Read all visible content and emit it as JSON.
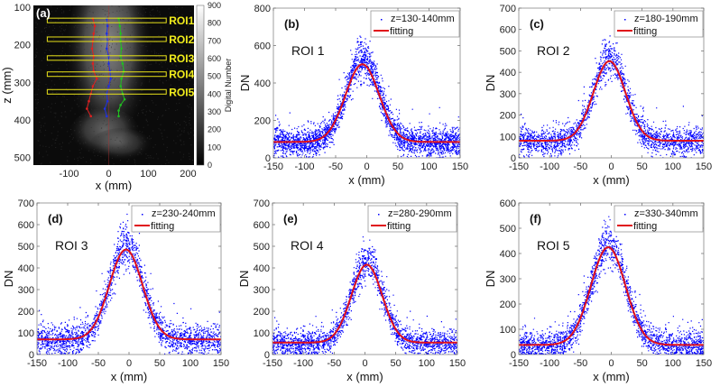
{
  "colors": {
    "scatter": "#0000ff",
    "fit": "#e0101a",
    "roi_box": "#e8e21a",
    "path_left": "#e02020",
    "path_center": "#2030e0",
    "path_right": "#20c020"
  },
  "chart_data": [
    {
      "id": "a",
      "type": "heatmap",
      "panel_label": "(a)",
      "xlabel": "x (mm)",
      "ylabel": "z (mm)",
      "xlim": [
        -190,
        215
      ],
      "ylim": [
        95,
        520
      ],
      "xticks": [
        -100,
        0,
        100,
        200
      ],
      "yticks": [
        100,
        200,
        300,
        400,
        500
      ],
      "colorbar": {
        "label": "Digital Number",
        "range": [
          0,
          900
        ],
        "ticks": [
          0,
          100,
          200,
          300,
          400,
          500,
          600,
          700,
          800,
          900
        ]
      },
      "rois": [
        {
          "label": "ROI1",
          "z": 135
        },
        {
          "label": "ROI2",
          "z": 185
        },
        {
          "label": "ROI3",
          "z": 235
        },
        {
          "label": "ROI4",
          "z": 278
        },
        {
          "label": "ROI5",
          "z": 325
        }
      ],
      "roi_x_range": [
        -155,
        145
      ],
      "paths": [
        {
          "name": "left-edge",
          "points": [
            [
              -40,
              130
            ],
            [
              -35,
              150
            ],
            [
              -38,
              170
            ],
            [
              -40,
              190
            ],
            [
              -42,
              210
            ],
            [
              -38,
              230
            ],
            [
              -40,
              250
            ],
            [
              -38,
              270
            ],
            [
              -30,
              290
            ],
            [
              -40,
              310
            ],
            [
              -45,
              330
            ],
            [
              -50,
              350
            ],
            [
              -55,
              370
            ],
            [
              -45,
              390
            ]
          ]
        },
        {
          "name": "center",
          "points": [
            [
              -5,
              130
            ],
            [
              -3,
              150
            ],
            [
              -5,
              170
            ],
            [
              -3,
              190
            ],
            [
              -5,
              210
            ],
            [
              0,
              230
            ],
            [
              0,
              250
            ],
            [
              3,
              270
            ],
            [
              5,
              290
            ],
            [
              0,
              310
            ],
            [
              -5,
              330
            ],
            [
              -3,
              350
            ],
            [
              -10,
              370
            ],
            [
              -5,
              390
            ]
          ]
        },
        {
          "name": "right-edge",
          "points": [
            [
              25,
              130
            ],
            [
              28,
              150
            ],
            [
              30,
              170
            ],
            [
              30,
              190
            ],
            [
              32,
              210
            ],
            [
              30,
              230
            ],
            [
              35,
              250
            ],
            [
              38,
              270
            ],
            [
              32,
              290
            ],
            [
              30,
              310
            ],
            [
              35,
              330
            ],
            [
              40,
              345
            ],
            [
              30,
              360
            ],
            [
              25,
              375
            ],
            [
              25,
              390
            ]
          ]
        }
      ]
    },
    {
      "id": "b",
      "type": "scatter",
      "panel_label": "(b)",
      "roi_label": "ROI 1",
      "legend": [
        "z=130-140mm",
        "fitting"
      ],
      "legend_position": "top-right",
      "xlabel": "x (mm)",
      "ylabel": "DN",
      "xlim": [
        -150,
        150
      ],
      "ylim": [
        0,
        800
      ],
      "xticks": [
        -150,
        -100,
        -50,
        0,
        50,
        100,
        150
      ],
      "yticks": [
        0,
        200,
        400,
        600,
        800
      ],
      "fit": {
        "baseline": 85,
        "peak": 500,
        "center": -7,
        "sigma": 27
      },
      "scatter_model": {
        "peak_extra": 230,
        "spread": 70,
        "tail_spread": 80
      }
    },
    {
      "id": "c",
      "type": "scatter",
      "panel_label": "(c)",
      "roi_label": "ROI 2",
      "legend": [
        "z=180-190mm",
        "fitting"
      ],
      "legend_position": "top-right",
      "xlabel": "x (mm)",
      "ylabel": "DN",
      "xlim": [
        -150,
        150
      ],
      "ylim": [
        0,
        700
      ],
      "xticks": [
        -150,
        -100,
        -50,
        0,
        50,
        100,
        150
      ],
      "yticks": [
        0,
        100,
        200,
        300,
        400,
        500,
        600,
        700
      ],
      "fit": {
        "baseline": 80,
        "peak": 452,
        "center": -3,
        "sigma": 26
      },
      "scatter_model": {
        "peak_extra": 150,
        "spread": 80,
        "tail_spread": 70
      }
    },
    {
      "id": "d",
      "type": "scatter",
      "panel_label": "(d)",
      "roi_label": "ROI 3",
      "legend": [
        "z=230-240mm",
        "fitting"
      ],
      "legend_position": "top-right",
      "xlabel": "x (mm)",
      "ylabel": "DN",
      "xlim": [
        -150,
        150
      ],
      "ylim": [
        0,
        700
      ],
      "xticks": [
        -150,
        -100,
        -50,
        0,
        50,
        100,
        150
      ],
      "yticks": [
        0,
        100,
        200,
        300,
        400,
        500,
        600,
        700
      ],
      "fit": {
        "baseline": 70,
        "peak": 485,
        "center": -5,
        "sigma": 27
      },
      "scatter_model": {
        "peak_extra": 180,
        "spread": 90,
        "tail_spread": 75
      }
    },
    {
      "id": "e",
      "type": "scatter",
      "panel_label": "(e)",
      "roi_label": "ROI 4",
      "legend": [
        "z=280-290mm",
        "fitting"
      ],
      "legend_position": "top-right",
      "xlabel": "x (mm)",
      "ylabel": "DN",
      "xlim": [
        -150,
        150
      ],
      "ylim": [
        0,
        700
      ],
      "xticks": [
        -150,
        -100,
        -50,
        0,
        50,
        100,
        150
      ],
      "yticks": [
        0,
        100,
        200,
        300,
        400,
        500,
        600,
        700
      ],
      "fit": {
        "baseline": 55,
        "peak": 415,
        "center": 3,
        "sigma": 25
      },
      "scatter_model": {
        "peak_extra": 160,
        "spread": 90,
        "tail_spread": 65
      }
    },
    {
      "id": "f",
      "type": "scatter",
      "panel_label": "(f)",
      "roi_label": "ROI 5",
      "legend": [
        "z=330-340mm",
        "fitting"
      ],
      "legend_position": "top-right",
      "xlabel": "x (mm)",
      "ylabel": "DN",
      "xlim": [
        -150,
        150
      ],
      "ylim": [
        0,
        600
      ],
      "xticks": [
        -150,
        -100,
        -50,
        0,
        50,
        100,
        150
      ],
      "yticks": [
        0,
        100,
        200,
        300,
        400,
        500,
        600
      ],
      "fit": {
        "baseline": 38,
        "peak": 425,
        "center": -5,
        "sigma": 28
      },
      "scatter_model": {
        "peak_extra": 130,
        "spread": 85,
        "tail_spread": 60
      }
    }
  ]
}
